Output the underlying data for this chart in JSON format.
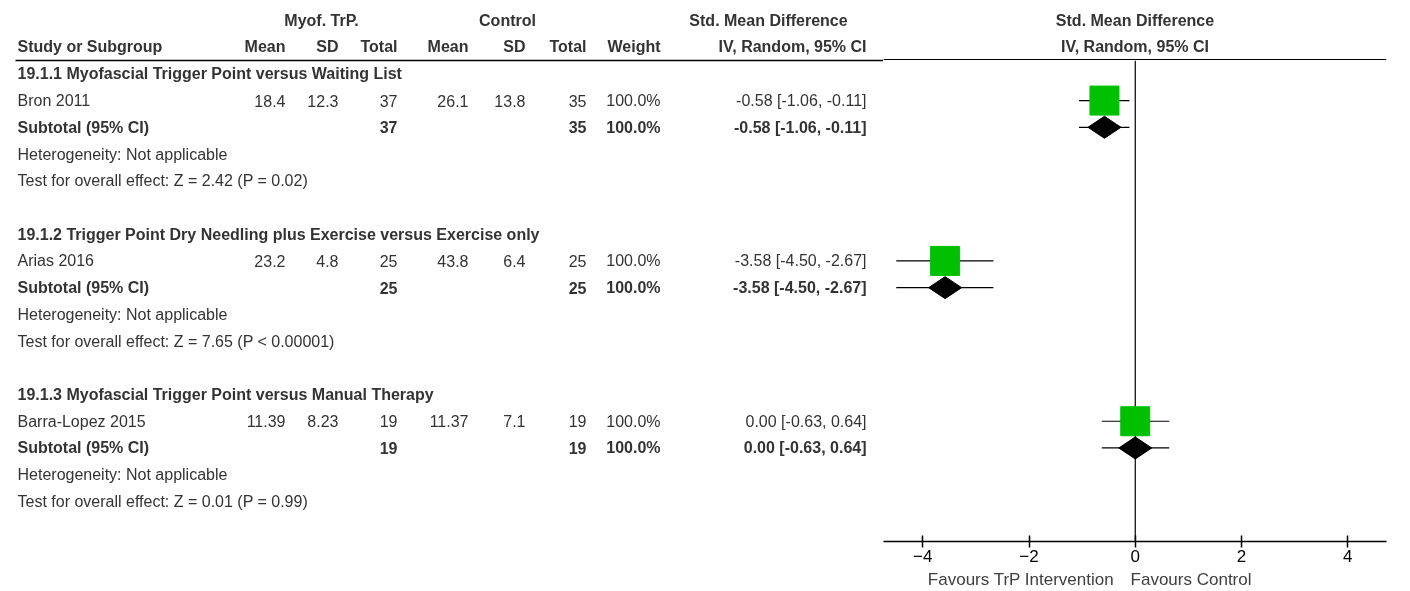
{
  "chart_data": [
    {
      "type": "other",
      "annotations": [
        "Myof. TrP.",
        "Control",
        "Std. Mean Difference"
      ],
      "categories": [
        "Study or Subgroup",
        "Mean",
        "SD",
        "Total",
        "Mean",
        "SD",
        "Total",
        "Weight",
        "IV, Random, 95% CI"
      ],
      "cells": [
        [
          "19.1.1 Myofascial Trigger Point versus Waiting List",
          null,
          null,
          null,
          null,
          null,
          null,
          null,
          null
        ],
        [
          "Bron 2011",
          "18.4",
          "12.3",
          "37",
          "26.1",
          "13.8",
          "35",
          "100.0%",
          "-0.58 [-1.06, -0.11]"
        ],
        [
          "Subtotal (95% CI)",
          null,
          null,
          "37",
          null,
          null,
          "35",
          "100.0%",
          "-0.58 [-1.06, -0.11]"
        ],
        [
          "Heterogeneity: Not applicable",
          null,
          null,
          null,
          null,
          null,
          null,
          null,
          null
        ],
        [
          "Test for overall effect: Z = 2.42 (P = 0.02)",
          null,
          null,
          null,
          null,
          null,
          null,
          null,
          null
        ],
        [
          "19.1.2 Trigger Point Dry Needling plus Exercise versus Exercise only",
          null,
          null,
          null,
          null,
          null,
          null,
          null,
          null
        ],
        [
          "Arias 2016",
          "23.2",
          "4.8",
          "25",
          "43.8",
          "6.4",
          "25",
          "100.0%",
          "-3.58 [-4.50, -2.67]"
        ],
        [
          "Subtotal (95% CI)",
          null,
          null,
          "25",
          null,
          null,
          "25",
          "100.0%",
          "-3.58 [-4.50, -2.67]"
        ],
        [
          "Heterogeneity: Not applicable",
          null,
          null,
          null,
          null,
          null,
          null,
          null,
          null
        ],
        [
          "Test for overall effect: Z = 7.65 (P < 0.00001)",
          null,
          null,
          null,
          null,
          null,
          null,
          null,
          null
        ],
        [
          "19.1.3 Myofascial Trigger Point versus Manual Therapy",
          null,
          null,
          null,
          null,
          null,
          null,
          null,
          null
        ],
        [
          "Barra-Lopez 2015",
          "11.39",
          "8.23",
          "19",
          "11.37",
          "7.1",
          "19",
          "100.0%",
          "0.00 [-0.63, 0.64]"
        ],
        [
          "Subtotal (95% CI)",
          null,
          null,
          "19",
          null,
          null,
          "19",
          "100.0%",
          "0.00 [-0.63, 0.64]"
        ],
        [
          "Heterogeneity: Not applicable",
          null,
          null,
          null,
          null,
          null,
          null,
          null,
          null
        ],
        [
          "Test for overall effect: Z = 0.01 (P = 0.99)",
          null,
          null,
          null,
          null,
          null,
          null,
          null,
          null
        ]
      ]
    },
    {
      "type": "scatter",
      "orientation": "horizontal",
      "title": "Std. Mean Difference",
      "subtitle": "IV, Random, 95% CI",
      "categories": [
        null,
        null,
        null,
        null,
        null,
        null,
        null,
        null,
        null,
        null,
        null,
        null,
        null,
        null,
        null,
        null,
        null,
        null
      ],
      "series": [
        {
          "type": "scatter",
          "marker": "square",
          "color": "#00c000",
          "values": [
            null,
            -0.58,
            null,
            null,
            null,
            null,
            null,
            -3.58,
            null,
            null,
            null,
            null,
            null,
            0.0,
            null,
            null,
            null,
            null
          ],
          "errors": [
            null,
            [
              -1.06,
              -0.11
            ],
            null,
            null,
            null,
            null,
            null,
            [
              -4.5,
              -2.67
            ],
            null,
            null,
            null,
            null,
            null,
            [
              -0.63,
              0.64
            ],
            null,
            null,
            null,
            null
          ]
        },
        {
          "type": "scatter",
          "marker": "diamond",
          "color": "#000000",
          "values": [
            null,
            null,
            -0.58,
            null,
            null,
            null,
            null,
            null,
            -3.58,
            null,
            null,
            null,
            null,
            null,
            0.0,
            null,
            null,
            null
          ],
          "errors": [
            null,
            null,
            [
              -1.06,
              -0.11
            ],
            null,
            null,
            null,
            null,
            null,
            [
              -4.5,
              -2.67
            ],
            null,
            null,
            null,
            null,
            null,
            [
              -0.63,
              0.64
            ],
            null,
            null,
            null
          ]
        }
      ],
      "xlim": [
        -4.74,
        4.73
      ],
      "xticks": [
        -4,
        -2,
        0,
        2,
        4
      ],
      "ref_lines": [
        {
          "axis": "x",
          "value": 0
        }
      ],
      "annotations": [
        "Favours TrP Intervention",
        "Favours Control"
      ],
      "tick_labels": "x",
      "grid": false
    }
  ]
}
